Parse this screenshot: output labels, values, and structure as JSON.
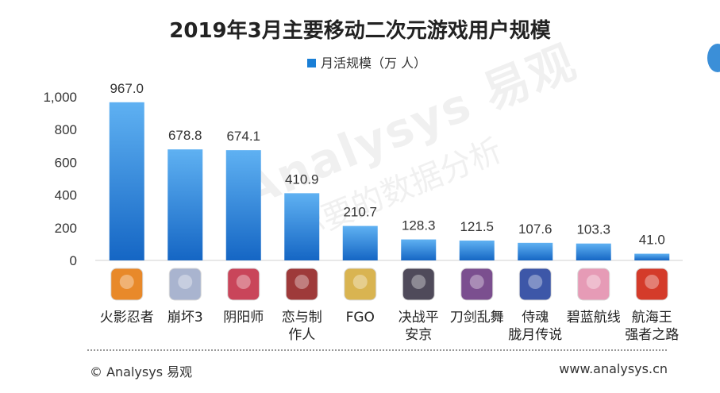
{
  "title": "2019年3月主要移动二次元游戏用户规模",
  "footer": {
    "copyright": "© Analysys 易观",
    "website": "www.analysys.cn"
  },
  "watermark": {
    "brand": "Analysys 易观",
    "slogan": "你要的数据分析"
  },
  "colors": {
    "bar_top": "#5fb1f2",
    "bar_bottom": "#1566c4",
    "legend": "#1a7fd6"
  },
  "chart_data": {
    "type": "bar",
    "title": "2019年3月主要移动二次元游戏用户规模",
    "legend": "top-center",
    "grid": false,
    "ylim": [
      0,
      1000
    ],
    "yticks": [
      "0",
      "200",
      "400",
      "600",
      "800",
      "1,000"
    ],
    "ytick_values": [
      0,
      200,
      400,
      600,
      800,
      1000
    ],
    "categories": [
      [
        "火影忍者"
      ],
      [
        "崩坏3"
      ],
      [
        "阴阳师"
      ],
      [
        "恋与制",
        "作人"
      ],
      [
        "FGO"
      ],
      [
        "决战平",
        "安京"
      ],
      [
        "刀剑乱舞"
      ],
      [
        "侍魂",
        "胧月传说"
      ],
      [
        "碧蓝航线"
      ],
      [
        "航海王",
        "强者之路"
      ]
    ],
    "series": [
      {
        "name": "月活规模（万 人）",
        "values": [
          967.0,
          678.8,
          674.1,
          410.9,
          210.7,
          128.3,
          121.5,
          107.6,
          103.3,
          41.0
        ],
        "labels": [
          "967.0",
          "678.8",
          "674.1",
          "410.9",
          "210.7",
          "128.3",
          "121.5",
          "107.6",
          "103.3",
          "41.0"
        ]
      }
    ],
    "icons": [
      {
        "name": "naruto-icon",
        "color": "#e8892a"
      },
      {
        "name": "honkai3-icon",
        "color": "#a9b4cf"
      },
      {
        "name": "onmyoji-icon",
        "color": "#c9455a"
      },
      {
        "name": "love-producer-icon",
        "color": "#9e3a3a"
      },
      {
        "name": "fgo-icon",
        "color": "#d9b451"
      },
      {
        "name": "heian-kyo-icon",
        "color": "#4f4a5a"
      },
      {
        "name": "touken-ranbu-icon",
        "color": "#7b4f8f"
      },
      {
        "name": "samurai-spirits-icon",
        "color": "#3d57a8"
      },
      {
        "name": "azur-lane-icon",
        "color": "#e69bb6"
      },
      {
        "name": "one-piece-icon",
        "color": "#d43b2a"
      }
    ]
  }
}
